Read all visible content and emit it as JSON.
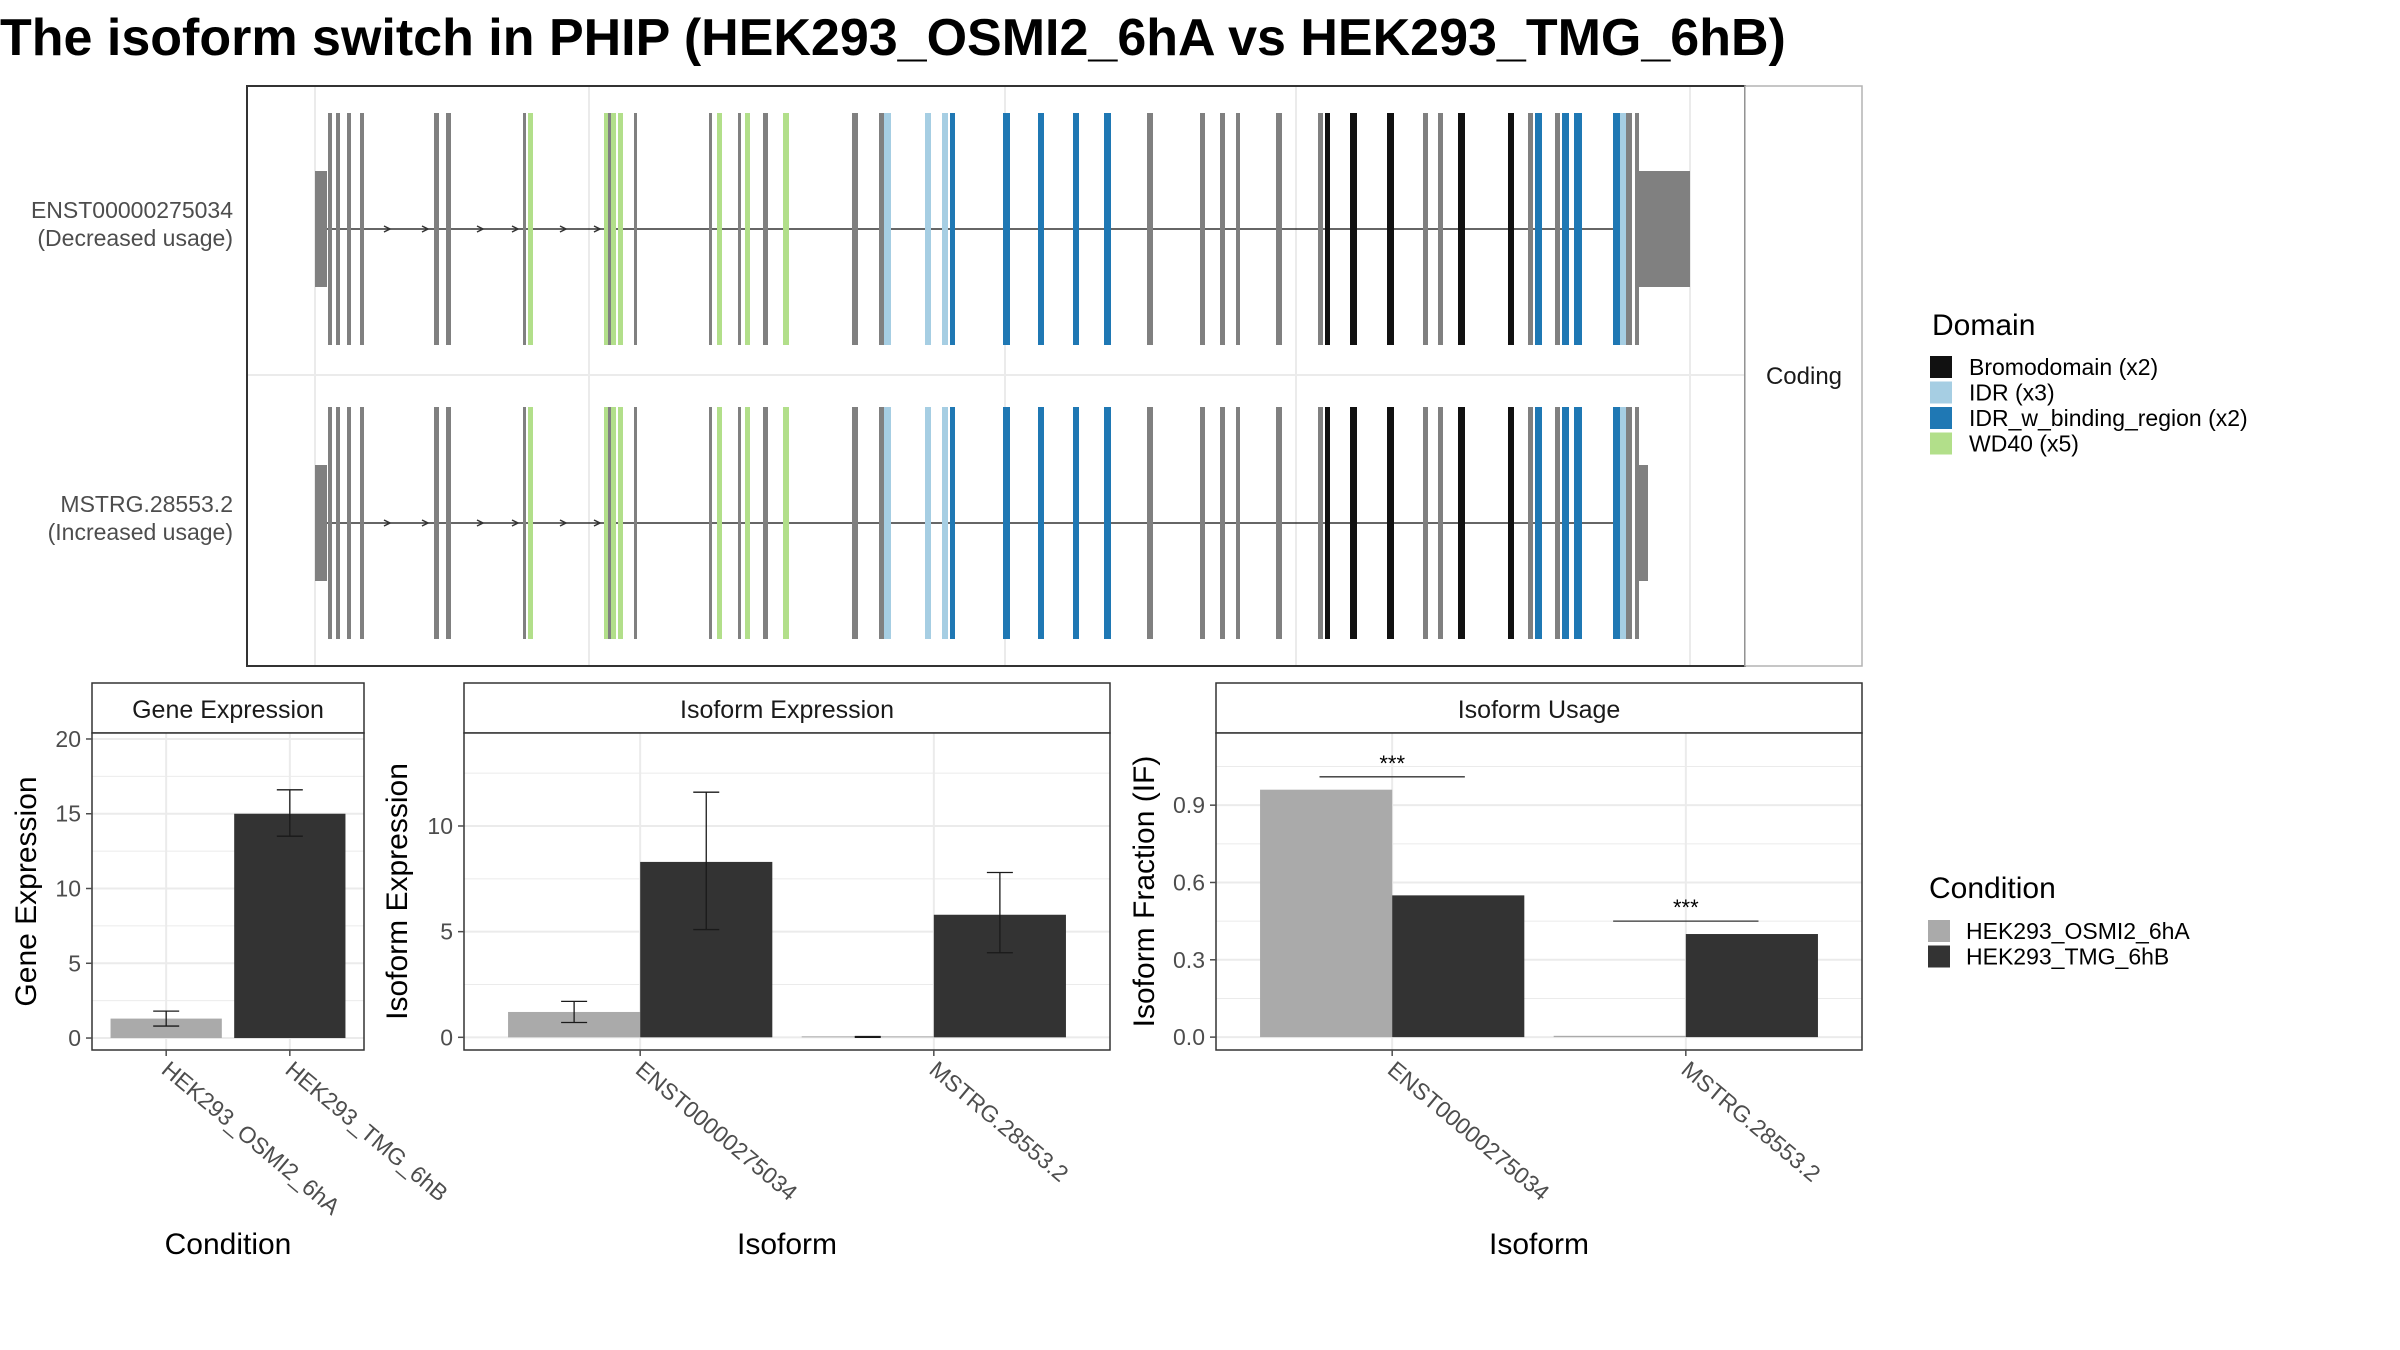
{
  "title": "The isoform switch in PHIP (HEK293_OSMI2_6hA vs HEK293_TMG_6hB)",
  "colors": {
    "panel_border": "#333333",
    "strip_fill": "#ffffff",
    "grid": "#ebebeb",
    "tick_text": "#4d4d4d",
    "exon": "#808080",
    "intron": "#333333",
    "condition_a": "#aaaaaa",
    "condition_b": "#333333"
  },
  "structure": {
    "facet_label": "Coding",
    "isoforms": [
      {
        "id": "ENST00000275034",
        "usage": "(Decreased usage)",
        "has_large_utr3": true
      },
      {
        "id": "MSTRG.28553.2",
        "usage": "(Increased usage)",
        "has_large_utr3": false
      }
    ],
    "legend": {
      "title": "Domain",
      "items": [
        {
          "label": "Bromodomain (x2)",
          "color": "#111111"
        },
        {
          "label": "IDR (x3)",
          "color": "#a6cee3"
        },
        {
          "label": "IDR_w_binding_region (x2)",
          "color": "#1f78b4"
        },
        {
          "label": "WD40 (x5)",
          "color": "#b2df8a"
        }
      ]
    }
  },
  "chart_data": [
    {
      "type": "bar",
      "title": "Gene Expression",
      "xlabel": "Condition",
      "ylabel": "Gene Expression",
      "categories": [
        "HEK293_OSMI2_6hA",
        "HEK293_TMG_6hB"
      ],
      "ylim": [
        -0.8,
        20.4
      ],
      "yticks": [
        0,
        5,
        10,
        15,
        20
      ],
      "yticklabels": [
        "0",
        "5",
        "10",
        "15",
        "20"
      ],
      "series": [
        {
          "values": [
            1.3,
            15.0
          ],
          "err_low": [
            0.8,
            13.5
          ],
          "err_high": [
            1.8,
            16.6
          ],
          "colors": [
            "#aaaaaa",
            "#333333"
          ]
        }
      ]
    },
    {
      "type": "bar",
      "title": "Isoform Expression",
      "xlabel": "Isoform",
      "ylabel": "Isoform Expression",
      "categories": [
        "ENST00000275034",
        "MSTRG.28553.2"
      ],
      "ylim": [
        -0.6,
        14.4
      ],
      "yticks": [
        0,
        5,
        10
      ],
      "yticklabels": [
        "0",
        "5",
        "10"
      ],
      "series": [
        {
          "values": [
            1.2,
            0.02
          ],
          "err_low": [
            0.7,
            0.0
          ],
          "err_high": [
            1.7,
            0.04
          ]
        },
        {
          "values": [
            8.3,
            5.8
          ],
          "err_low": [
            5.1,
            4.0
          ],
          "err_high": [
            11.6,
            7.8
          ]
        }
      ]
    },
    {
      "type": "bar",
      "title": "Isoform Usage",
      "xlabel": "Isoform",
      "ylabel": "Isoform Fraction (IF)",
      "categories": [
        "ENST00000275034",
        "MSTRG.28553.2"
      ],
      "ylim": [
        -0.05,
        1.18
      ],
      "yticks": [
        0,
        0.3,
        0.6,
        0.9
      ],
      "yticklabels": [
        "0.0",
        "0.3",
        "0.6",
        "0.9"
      ],
      "series": [
        {
          "values": [
            0.96,
            0.005
          ]
        },
        {
          "values": [
            0.55,
            0.4
          ]
        }
      ],
      "annotations": [
        {
          "category": "ENST00000275034",
          "y": 1.01,
          "text": "***"
        },
        {
          "category": "MSTRG.28553.2",
          "y": 0.45,
          "text": "***"
        }
      ]
    }
  ],
  "condition_legend": {
    "title": "Condition",
    "items": [
      {
        "label": "HEK293_OSMI2_6hA",
        "color": "#aaaaaa"
      },
      {
        "label": "HEK293_TMG_6hB",
        "color": "#333333"
      }
    ]
  }
}
